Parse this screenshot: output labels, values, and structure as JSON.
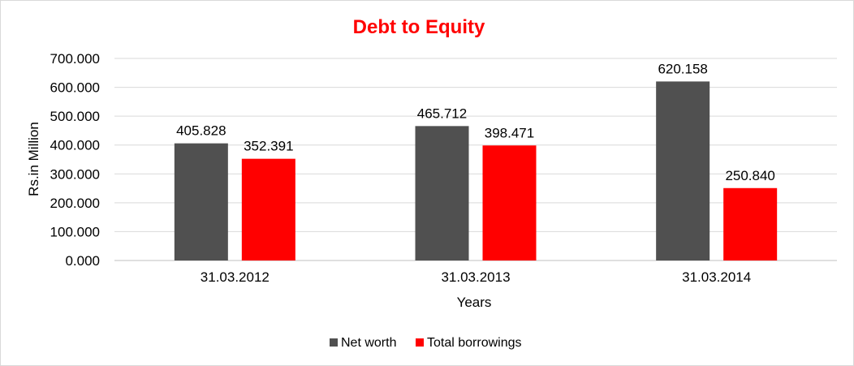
{
  "chart_data": {
    "type": "bar",
    "title": "Debt to Equity",
    "xlabel": "Years",
    "ylabel": "Rs.in Million",
    "categories": [
      "31.03.2012",
      "31.03.2013",
      "31.03.2014"
    ],
    "series": [
      {
        "name": "Net worth",
        "values": [
          405.828,
          465.712,
          620.158
        ],
        "labels": [
          "405.828",
          "465.712",
          "620.158"
        ],
        "color": "#505050"
      },
      {
        "name": "Total borrowings",
        "values": [
          352.391,
          398.471,
          250.84
        ],
        "labels": [
          "352.391",
          "398.471",
          "250.840"
        ],
        "color": "#ff0000"
      }
    ],
    "ylim": [
      0,
      700
    ],
    "yticks": [
      0,
      100,
      200,
      300,
      400,
      500,
      600,
      700
    ],
    "ytick_labels": [
      "0.000",
      "100.000",
      "200.000",
      "300.000",
      "400.000",
      "500.000",
      "600.000",
      "700.000"
    ],
    "grid": true,
    "legend_position": "bottom",
    "title_color": "#ff0000"
  }
}
